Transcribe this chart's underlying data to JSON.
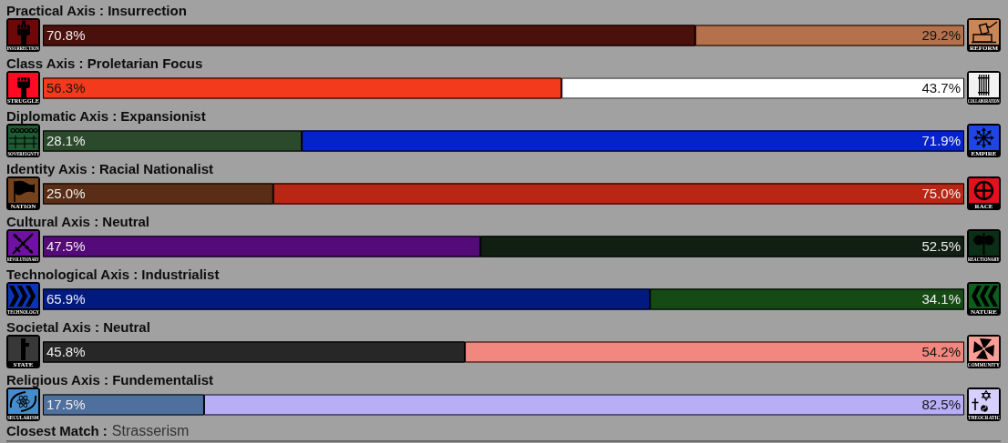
{
  "chart_data": [
    {
      "type": "bar",
      "orientation": "horizontal",
      "stacked": true,
      "categories": [
        "Practical Axis : Insurrection",
        "Class Axis : Proletarian Focus",
        "Diplomatic Axis : Expansionist",
        "Identity Axis : Racial Nationalist",
        "Cultural Axis : Neutral",
        "Technological Axis : Industrialist",
        "Societal Axis : Neutral",
        "Religious Axis : Fundementalist"
      ],
      "xlim": [
        0,
        100
      ],
      "tick_labels": "y",
      "series": [
        {
          "name": "INSURRECTION",
          "color": "#4a100c",
          "values": [
            70.8,
            null,
            null,
            null,
            null,
            null,
            null,
            null
          ],
          "value_labels": [
            "70.8%",
            null,
            null,
            null,
            null,
            null,
            null,
            null
          ]
        },
        {
          "name": "REFORM",
          "color": "#b5714b",
          "values": [
            29.2,
            null,
            null,
            null,
            null,
            null,
            null,
            null
          ],
          "value_labels": [
            "29.2%",
            null,
            null,
            null,
            null,
            null,
            null,
            null
          ]
        },
        {
          "name": "STRUGGLE",
          "color": "#f33a1c",
          "values": [
            null,
            56.3,
            null,
            null,
            null,
            null,
            null,
            null
          ],
          "value_labels": [
            null,
            "56.3%",
            null,
            null,
            null,
            null,
            null,
            null
          ]
        },
        {
          "name": "COLLABORATION",
          "color": "#ffffff",
          "values": [
            null,
            43.7,
            null,
            null,
            null,
            null,
            null,
            null
          ],
          "value_labels": [
            null,
            "43.7%",
            null,
            null,
            null,
            null,
            null,
            null
          ]
        },
        {
          "name": "SOVEREIGNTY",
          "color": "#2b4a2b",
          "values": [
            null,
            null,
            28.1,
            null,
            null,
            null,
            null,
            null
          ],
          "value_labels": [
            null,
            null,
            "28.1%",
            null,
            null,
            null,
            null,
            null
          ]
        },
        {
          "name": "EMPIRE",
          "color": "#0423c9",
          "values": [
            null,
            null,
            71.9,
            null,
            null,
            null,
            null,
            null
          ],
          "value_labels": [
            null,
            null,
            "71.9%",
            null,
            null,
            null,
            null,
            null
          ]
        },
        {
          "name": "NATION",
          "color": "#5a2e16",
          "values": [
            null,
            null,
            null,
            25.0,
            null,
            null,
            null,
            null
          ],
          "value_labels": [
            null,
            null,
            null,
            "25.0%",
            null,
            null,
            null,
            null
          ]
        },
        {
          "name": "RACE",
          "color": "#ba2614",
          "values": [
            null,
            null,
            null,
            75.0,
            null,
            null,
            null,
            null
          ],
          "value_labels": [
            null,
            null,
            null,
            "75.0%",
            null,
            null,
            null,
            null
          ]
        },
        {
          "name": "REVOLUTIONARY",
          "color": "#540a79",
          "values": [
            null,
            null,
            null,
            null,
            47.5,
            null,
            null,
            null
          ],
          "value_labels": [
            null,
            null,
            null,
            null,
            "47.5%",
            null,
            null,
            null
          ]
        },
        {
          "name": "REACTIONARY",
          "color": "#101f11",
          "values": [
            null,
            null,
            null,
            null,
            52.5,
            null,
            null,
            null
          ],
          "value_labels": [
            null,
            null,
            null,
            null,
            "52.5%",
            null,
            null,
            null
          ]
        },
        {
          "name": "TECHNOLOGY",
          "color": "#011a80",
          "values": [
            null,
            null,
            null,
            null,
            null,
            65.9,
            null,
            null
          ],
          "value_labels": [
            null,
            null,
            null,
            null,
            null,
            "65.9%",
            null,
            null
          ]
        },
        {
          "name": "NATURE",
          "color": "#154a15",
          "values": [
            null,
            null,
            null,
            null,
            null,
            34.1,
            null,
            null
          ],
          "value_labels": [
            null,
            null,
            null,
            null,
            null,
            "34.1%",
            null,
            null
          ]
        },
        {
          "name": "STATE",
          "color": "#272727",
          "values": [
            null,
            null,
            null,
            null,
            null,
            null,
            45.8,
            null
          ],
          "value_labels": [
            null,
            null,
            null,
            null,
            null,
            null,
            "45.8%",
            null
          ]
        },
        {
          "name": "COMMUNITY",
          "color": "#f2877f",
          "values": [
            null,
            null,
            null,
            null,
            null,
            null,
            54.2,
            null
          ],
          "value_labels": [
            null,
            null,
            null,
            null,
            null,
            null,
            "54.2%",
            null
          ]
        },
        {
          "name": "SECULARISM",
          "color": "#4f6f9d",
          "values": [
            null,
            null,
            null,
            null,
            null,
            null,
            null,
            17.5
          ],
          "value_labels": [
            null,
            null,
            null,
            null,
            null,
            null,
            null,
            "17.5%"
          ]
        },
        {
          "name": "THEOCRATIC",
          "color": "#b8aef6",
          "values": [
            null,
            null,
            null,
            null,
            null,
            null,
            null,
            82.5
          ],
          "value_labels": [
            null,
            null,
            null,
            null,
            null,
            null,
            null,
            "82.5%"
          ]
        }
      ]
    },
    {
      "type": "other",
      "title": "Closest Match :",
      "subtitle": "Strasserism"
    }
  ]
}
